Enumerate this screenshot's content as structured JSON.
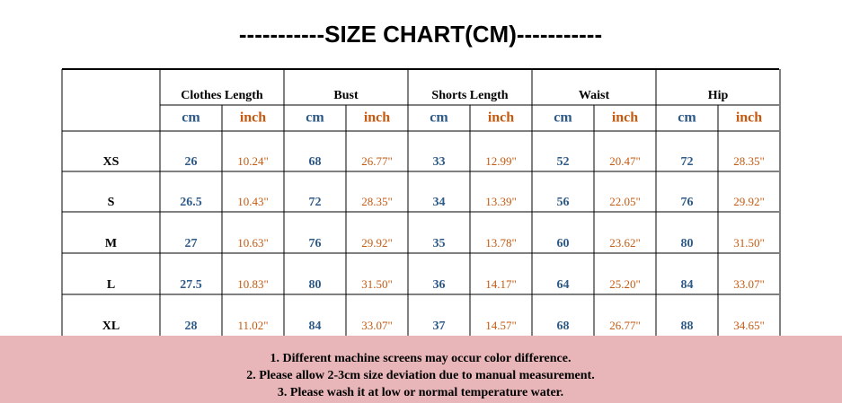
{
  "header": {
    "title": "-----------SIZE CHART(CM)-----------"
  },
  "table": {
    "groups": [
      "Clothes Length",
      "Bust",
      "Shorts Length",
      "Waist",
      "Hip"
    ],
    "units": [
      "cm",
      "inch"
    ],
    "rows": [
      {
        "size": "XS",
        "values": [
          "26",
          "10.24\"",
          "68",
          "26.77\"",
          "33",
          "12.99\"",
          "52",
          "20.47\"",
          "72",
          "28.35\""
        ]
      },
      {
        "size": "S",
        "values": [
          "26.5",
          "10.43\"",
          "72",
          "28.35\"",
          "34",
          "13.39\"",
          "56",
          "22.05\"",
          "76",
          "29.92\""
        ]
      },
      {
        "size": "M",
        "values": [
          "27",
          "10.63\"",
          "76",
          "29.92\"",
          "35",
          "13.78\"",
          "60",
          "23.62\"",
          "80",
          "31.50\""
        ]
      },
      {
        "size": "L",
        "values": [
          "27.5",
          "10.83\"",
          "80",
          "31.50\"",
          "36",
          "14.17\"",
          "64",
          "25.20\"",
          "84",
          "33.07\""
        ]
      },
      {
        "size": "XL",
        "values": [
          "28",
          "11.02\"",
          "84",
          "33.07\"",
          "37",
          "14.57\"",
          "68",
          "26.77\"",
          "88",
          "34.65\""
        ]
      }
    ]
  },
  "notes": [
    "1. Different machine screens may occur color difference.",
    "2. Please allow 2-3cm size deviation due to manual measurement.",
    "3. Please wash it at low or normal temperature water."
  ]
}
